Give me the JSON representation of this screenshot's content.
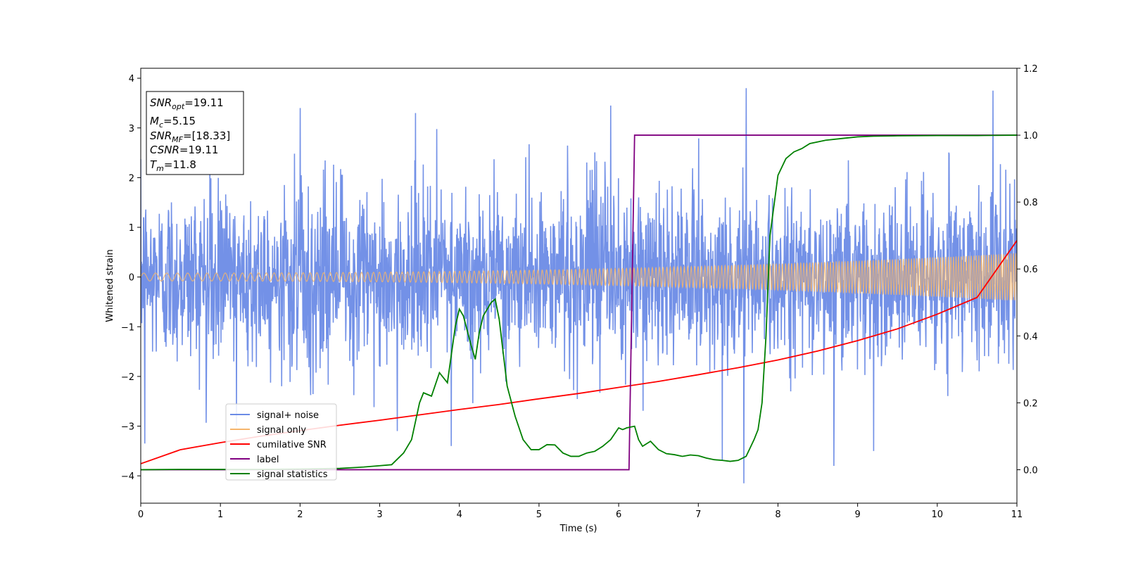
{
  "chart_data": {
    "type": "line",
    "xlabel": "Time (s)",
    "ylabel": "Whitened strain",
    "xlim": [
      0,
      11
    ],
    "ylim_left": [
      -4.55,
      4.2
    ],
    "ylim_right": [
      -0.1,
      1.2
    ],
    "x_ticks": [
      0,
      1,
      2,
      3,
      4,
      5,
      6,
      7,
      8,
      9,
      10,
      11
    ],
    "y_left_ticks": [
      -4,
      -3,
      -2,
      -1,
      0,
      1,
      2,
      3,
      4
    ],
    "y_right_ticks": [
      "0.0",
      "0.2",
      "0.4",
      "0.6",
      "0.8",
      "1.0",
      "1.2"
    ],
    "grid": false,
    "legend_position": "lower-left",
    "annotation": [
      {
        "sym": "SNR",
        "sub": "opt",
        "value": "=19.11"
      },
      {
        "sym": "M",
        "sub": "c",
        "value": "=5.15"
      },
      {
        "sym": "SNR",
        "sub": "MF",
        "value": "=[18.33]"
      },
      {
        "sym": "CSNR",
        "sub": "",
        "value": "=19.11"
      },
      {
        "sym": "T",
        "sub": "m",
        "value": "=11.8"
      }
    ],
    "series": [
      {
        "name": "signal+ noise",
        "axis": "left",
        "color": "#6b8be6",
        "noise_sigma": 0.9,
        "peaks": [
          [
            2.0,
            3.4
          ],
          [
            3.45,
            3.3
          ],
          [
            5.9,
            3.45
          ],
          [
            7.6,
            3.8
          ],
          [
            10.7,
            3.75
          ],
          [
            1.2,
            -3.0
          ],
          [
            3.9,
            -3.4
          ],
          [
            7.3,
            -3.7
          ],
          [
            7.57,
            -4.15
          ],
          [
            8.7,
            -3.8
          ],
          [
            9.2,
            -3.5
          ],
          [
            0.05,
            -3.35
          ]
        ]
      },
      {
        "name": "signal only",
        "axis": "left",
        "color": "#f5b56b",
        "amplitude_start": 0.08,
        "amplitude_end": 0.48
      },
      {
        "name": "cumilative SNR",
        "axis": "right",
        "color": "#ff0000",
        "x": [
          0,
          0.5,
          1,
          1.5,
          2,
          2.5,
          3,
          3.5,
          4,
          4.5,
          5,
          5.5,
          6,
          6.5,
          7,
          7.5,
          8,
          8.5,
          9,
          9.5,
          10,
          10.5,
          11
        ],
        "y": [
          0.018,
          0.06,
          0.081,
          0.1,
          0.117,
          0.133,
          0.148,
          0.164,
          0.18,
          0.195,
          0.212,
          0.228,
          0.246,
          0.264,
          0.284,
          0.305,
          0.328,
          0.355,
          0.386,
          0.421,
          0.465,
          0.515,
          0.685
        ]
      },
      {
        "name": "label",
        "axis": "right",
        "color": "#800080",
        "x": [
          0,
          6.13,
          6.2,
          11
        ],
        "y": [
          0,
          0,
          1.0,
          1.0
        ]
      },
      {
        "name": "signal statistics",
        "axis": "right",
        "color": "#008000",
        "x": [
          0,
          0.5,
          1,
          1.5,
          2,
          2.5,
          2.8,
          3.0,
          3.15,
          3.3,
          3.4,
          3.5,
          3.55,
          3.65,
          3.75,
          3.85,
          3.95,
          4.0,
          4.05,
          4.15,
          4.2,
          4.25,
          4.3,
          4.4,
          4.45,
          4.5,
          4.6,
          4.7,
          4.8,
          4.9,
          5.0,
          5.1,
          5.2,
          5.3,
          5.4,
          5.5,
          5.6,
          5.7,
          5.8,
          5.9,
          6.0,
          6.05,
          6.1,
          6.2,
          6.25,
          6.3,
          6.4,
          6.5,
          6.6,
          6.7,
          6.8,
          6.9,
          7.0,
          7.1,
          7.2,
          7.3,
          7.4,
          7.5,
          7.6,
          7.7,
          7.75,
          7.8,
          7.85,
          7.9,
          8.0,
          8.1,
          8.2,
          8.3,
          8.4,
          8.5,
          8.6,
          8.8,
          9.0,
          9.2,
          9.5,
          10.0,
          10.5,
          11
        ],
        "y": [
          0.0,
          0.001,
          0.001,
          0.001,
          0.002,
          0.004,
          0.008,
          0.012,
          0.015,
          0.05,
          0.09,
          0.2,
          0.23,
          0.22,
          0.29,
          0.26,
          0.43,
          0.48,
          0.46,
          0.37,
          0.33,
          0.41,
          0.46,
          0.5,
          0.51,
          0.45,
          0.25,
          0.16,
          0.09,
          0.06,
          0.06,
          0.075,
          0.074,
          0.05,
          0.04,
          0.04,
          0.05,
          0.055,
          0.07,
          0.09,
          0.125,
          0.12,
          0.125,
          0.13,
          0.09,
          0.07,
          0.085,
          0.06,
          0.048,
          0.045,
          0.04,
          0.044,
          0.042,
          0.035,
          0.03,
          0.028,
          0.025,
          0.028,
          0.04,
          0.09,
          0.12,
          0.2,
          0.4,
          0.7,
          0.88,
          0.93,
          0.95,
          0.96,
          0.975,
          0.98,
          0.985,
          0.99,
          0.995,
          0.997,
          0.998,
          0.999,
          0.999,
          1.0
        ]
      }
    ]
  }
}
